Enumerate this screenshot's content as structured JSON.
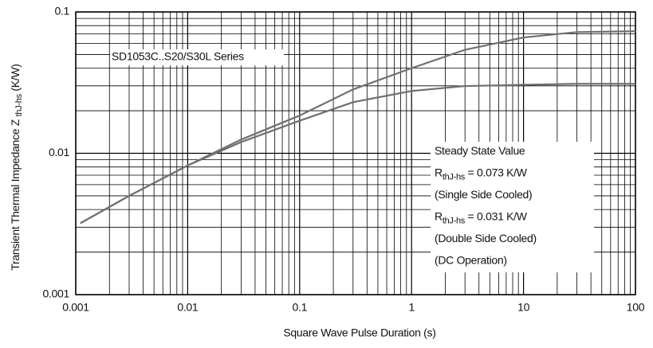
{
  "chart_data": {
    "type": "line",
    "xlabel": "Square Wave Pulse Duration (s)",
    "ylabel": {
      "text": "Transient Thermal Impedance Z ",
      "sub": "thJ-hs",
      "rest": " (K/W)"
    },
    "x": [
      0.0011,
      0.003,
      0.01,
      0.03,
      0.1,
      0.3,
      1,
      3,
      10,
      30,
      100
    ],
    "series": [
      {
        "color": "#707070",
        "values": [
          0.0032,
          0.005,
          0.0082,
          0.0125,
          0.0185,
          0.0283,
          0.04,
          0.054,
          0.066,
          0.072,
          0.073
        ]
      },
      {
        "color": "#707070",
        "values": [
          0.0032,
          0.005,
          0.0082,
          0.012,
          0.017,
          0.023,
          0.0276,
          0.0299,
          0.0305,
          0.031,
          0.031
        ]
      }
    ],
    "xlog": true,
    "ylog": true,
    "grid": true,
    "xlim": [
      0.001,
      100
    ],
    "ylim": [
      0.001,
      0.1
    ],
    "xticks": [
      0.001,
      0.01,
      0.1,
      1,
      10,
      100
    ],
    "yticks": [
      0.001,
      0.01,
      0.1
    ],
    "xticks_minor": [
      0.002,
      0.003,
      0.004,
      0.005,
      0.006,
      0.007,
      0.008,
      0.009,
      0.02,
      0.03,
      0.04,
      0.05,
      0.06,
      0.07,
      0.08,
      0.09,
      0.2,
      0.3,
      0.4,
      0.5,
      0.6,
      0.7,
      0.8,
      0.9,
      2,
      3,
      4,
      5,
      6,
      7,
      8,
      9,
      20,
      30,
      40,
      50,
      60,
      70,
      80,
      90
    ],
    "yticks_minor": [
      0.002,
      0.003,
      0.004,
      0.005,
      0.006,
      0.007,
      0.008,
      0.009,
      0.02,
      0.03,
      0.04,
      0.05,
      0.06,
      0.07,
      0.08,
      0.09
    ],
    "series_label": "SD1053C..S20/S30L Series",
    "annotation": [
      {
        "text": "Steady State Value"
      },
      {
        "text": "R",
        "sub": "thJ-hs",
        "rest": " = 0.073 K/W"
      },
      {
        "text": "(Single Side Cooled)"
      },
      {
        "text": "R",
        "sub": "thJ-hs",
        "rest": " = 0.031 K/W"
      },
      {
        "text": "(Double Side Cooled)"
      },
      {
        "text": "(DC Operation)"
      }
    ]
  }
}
